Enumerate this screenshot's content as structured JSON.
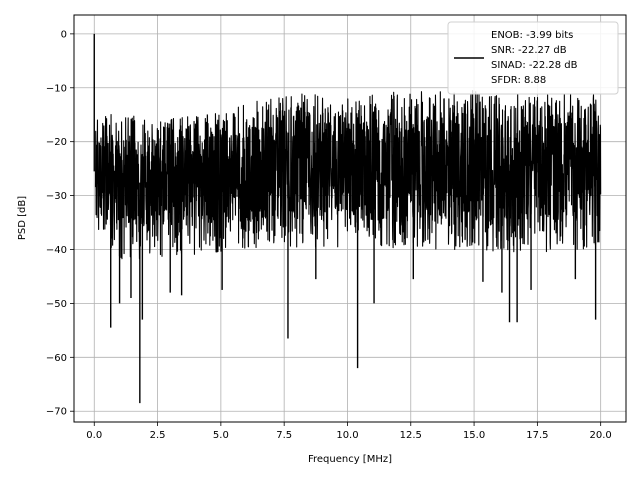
{
  "chart_data": {
    "type": "line",
    "title": "",
    "xlabel": "Frequency [MHz]",
    "ylabel": "PSD [dB]",
    "xlim": [
      -0.8,
      21.0
    ],
    "ylim": [
      -72,
      3.5
    ],
    "xticks": [
      0.0,
      2.5,
      5.0,
      7.5,
      10.0,
      12.5,
      15.0,
      17.5,
      20.0
    ],
    "xtick_labels": [
      "0.0",
      "2.5",
      "5.0",
      "7.5",
      "10.0",
      "12.5",
      "15.0",
      "17.5",
      "20.0"
    ],
    "yticks": [
      0,
      -10,
      -20,
      -30,
      -40,
      -50,
      -60,
      -70
    ],
    "ytick_labels": [
      "0",
      "−10",
      "−20",
      "−30",
      "−40",
      "−50",
      "−60",
      "−70"
    ],
    "grid": true,
    "legend_position": "top-right",
    "legend": [
      "ENOB: -3.99 bits",
      "SNR: -22.27 dB",
      "SINAD: -22.28 dB",
      "SFDR: 8.88"
    ],
    "series": [
      {
        "color": "#000000",
        "spikes": [
          {
            "x": 0.0,
            "y": 0.0
          },
          {
            "x": 1.8,
            "y": -68.5
          },
          {
            "x": 1.9,
            "y": -53.0
          },
          {
            "x": 0.65,
            "y": -54.5
          },
          {
            "x": 7.65,
            "y": -56.5
          },
          {
            "x": 10.4,
            "y": -62.0
          },
          {
            "x": 16.4,
            "y": -53.5
          },
          {
            "x": 16.7,
            "y": -53.5
          },
          {
            "x": 19.8,
            "y": -53.0
          },
          {
            "x": 1.0,
            "y": -50.0
          },
          {
            "x": 1.45,
            "y": -49.0
          },
          {
            "x": 3.0,
            "y": -48.0
          },
          {
            "x": 3.45,
            "y": -48.5
          },
          {
            "x": 5.05,
            "y": -47.5
          },
          {
            "x": 8.75,
            "y": -45.5
          },
          {
            "x": 11.05,
            "y": -50.0
          },
          {
            "x": 12.6,
            "y": -45.5
          },
          {
            "x": 15.35,
            "y": -46.0
          },
          {
            "x": 16.1,
            "y": -48.0
          },
          {
            "x": 17.25,
            "y": -47.5
          },
          {
            "x": 19.0,
            "y": -45.5
          }
        ],
        "envelope": {
          "x": [
            0.05,
            1.0,
            2.5,
            5.0,
            7.5,
            10.0,
            12.5,
            15.0,
            17.5,
            20.0
          ],
          "upper": [
            -14.0,
            -14.5,
            -16.0,
            -14.5,
            -11.0,
            -11.5,
            -10.5,
            -10.5,
            -11.5,
            -10.5
          ],
          "lower": [
            -37.0,
            -42.0,
            -41.5,
            -40.5,
            -40.0,
            -40.0,
            -40.0,
            -40.5,
            -40.5,
            -40.0
          ],
          "core_upper": [
            -18.0,
            -20.0,
            -19.0,
            -17.5,
            -16.0,
            -16.0,
            -15.5,
            -15.5,
            -16.0,
            -15.5
          ],
          "core_lower": [
            -33.0,
            -36.0,
            -35.5,
            -35.0,
            -34.5,
            -34.5,
            -34.5,
            -35.0,
            -35.0,
            -34.5
          ]
        }
      }
    ]
  }
}
